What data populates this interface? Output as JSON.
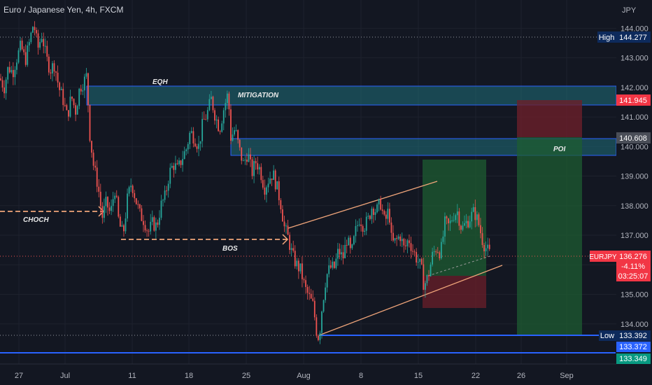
{
  "header": {
    "symbol_title": "Euro / Japanese Yen, 4h, FXCM",
    "currency": "JPY"
  },
  "colors": {
    "background": "#131722",
    "up": "#26a69a",
    "down": "#ef5350",
    "zone_fill": "#1f6f7a",
    "zone_border": "#2962ff",
    "trend_line": "#f0a57a",
    "dash_line": "#f0a57a",
    "hline": "#2962ff"
  },
  "chart_data": {
    "type": "candlestick",
    "y_range": [
      133.0,
      144.6
    ],
    "x_ticks": [
      "27",
      "Jul",
      "11",
      "18",
      "25",
      "Aug",
      "8",
      "15",
      "22",
      "26",
      "Sep"
    ],
    "y_ticks": [
      "144.000",
      "143.000",
      "142.000",
      "141.000",
      "140.000",
      "139.000",
      "138.000",
      "137.000",
      "136.000",
      "135.000",
      "134.000"
    ],
    "price_path": [
      [
        0,
        142.3
      ],
      [
        6,
        142.0
      ],
      [
        12,
        142.7
      ],
      [
        18,
        142.5
      ],
      [
        24,
        143.0
      ],
      [
        30,
        143.4
      ],
      [
        36,
        142.9
      ],
      [
        42,
        143.5
      ],
      [
        48,
        144.2
      ],
      [
        54,
        143.3
      ],
      [
        60,
        143.8
      ],
      [
        66,
        143.0
      ],
      [
        72,
        142.6
      ],
      [
        78,
        142.8
      ],
      [
        84,
        142.0
      ],
      [
        90,
        141.6
      ],
      [
        96,
        141.0
      ],
      [
        102,
        141.7
      ],
      [
        108,
        141.2
      ],
      [
        114,
        142.0
      ],
      [
        120,
        142.2
      ],
      [
        124,
        142.4
      ],
      [
        128,
        140.5
      ],
      [
        134,
        139.3
      ],
      [
        140,
        138.7
      ],
      [
        146,
        137.6
      ],
      [
        152,
        138.1
      ],
      [
        158,
        137.7
      ],
      [
        164,
        138.6
      ],
      [
        170,
        137.4
      ],
      [
        176,
        137.0
      ],
      [
        182,
        138.2
      ],
      [
        188,
        138.8
      ],
      [
        194,
        138.2
      ],
      [
        200,
        137.7
      ],
      [
        206,
        137.5
      ],
      [
        212,
        137.1
      ],
      [
        218,
        137.4
      ],
      [
        224,
        137.3
      ],
      [
        230,
        138.0
      ],
      [
        236,
        138.3
      ],
      [
        242,
        139.1
      ],
      [
        248,
        139.4
      ],
      [
        254,
        139.2
      ],
      [
        260,
        139.6
      ],
      [
        266,
        139.9
      ],
      [
        272,
        140.5
      ],
      [
        278,
        140.3
      ],
      [
        284,
        140.0
      ],
      [
        290,
        140.8
      ],
      [
        296,
        141.1
      ],
      [
        302,
        141.6
      ],
      [
        308,
        141.0
      ],
      [
        314,
        140.6
      ],
      [
        320,
        141.3
      ],
      [
        326,
        141.8
      ],
      [
        330,
        140.3
      ],
      [
        336,
        140.6
      ],
      [
        342,
        139.9
      ],
      [
        348,
        139.4
      ],
      [
        354,
        139.8
      ],
      [
        360,
        139.1
      ],
      [
        366,
        139.5
      ],
      [
        372,
        139.2
      ],
      [
        378,
        138.6
      ],
      [
        384,
        138.9
      ],
      [
        390,
        139.1
      ],
      [
        396,
        138.6
      ],
      [
        402,
        138.0
      ],
      [
        406,
        137.3
      ],
      [
        412,
        136.9
      ],
      [
        418,
        136.3
      ],
      [
        424,
        136.0
      ],
      [
        430,
        135.8
      ],
      [
        436,
        135.2
      ],
      [
        442,
        134.9
      ],
      [
        448,
        134.6
      ],
      [
        452,
        133.8
      ],
      [
        456,
        133.5
      ],
      [
        460,
        134.5
      ],
      [
        466,
        135.6
      ],
      [
        472,
        135.9
      ],
      [
        478,
        135.9
      ],
      [
        484,
        136.5
      ],
      [
        490,
        136.2
      ],
      [
        496,
        136.9
      ],
      [
        502,
        136.3
      ],
      [
        508,
        137.1
      ],
      [
        514,
        137.6
      ],
      [
        520,
        137.3
      ],
      [
        526,
        137.5
      ],
      [
        532,
        138.0
      ],
      [
        538,
        137.8
      ],
      [
        544,
        138.1
      ],
      [
        550,
        137.4
      ],
      [
        556,
        137.9
      ],
      [
        560,
        136.7
      ],
      [
        566,
        136.8
      ],
      [
        572,
        137.0
      ],
      [
        578,
        136.5
      ],
      [
        584,
        136.9
      ],
      [
        590,
        136.5
      ],
      [
        596,
        136.2
      ],
      [
        602,
        135.9
      ],
      [
        606,
        135.3
      ],
      [
        612,
        135.6
      ],
      [
        618,
        136.3
      ],
      [
        624,
        136.6
      ],
      [
        630,
        136.4
      ],
      [
        636,
        137.4
      ],
      [
        642,
        137.3
      ],
      [
        648,
        137.7
      ],
      [
        654,
        137.8
      ],
      [
        660,
        137.2
      ],
      [
        666,
        137.4
      ],
      [
        672,
        137.6
      ],
      [
        678,
        137.8
      ],
      [
        684,
        137.4
      ],
      [
        690,
        136.8
      ],
      [
        696,
        136.5
      ],
      [
        702,
        136.3
      ]
    ],
    "price_labels": [
      {
        "label": "High",
        "value": "144.277",
        "price": 144.277
      },
      {
        "label": "",
        "value": "141.945",
        "price": 141.945
      },
      {
        "label": "",
        "value": "140.608",
        "price": 140.608
      },
      {
        "label": "EURJPY",
        "value": "136.276",
        "change": "-4.11%",
        "countdown": "03:25:07",
        "price": 136.276
      },
      {
        "label": "Low",
        "value": "133.392",
        "price": 133.392
      },
      {
        "label": "",
        "value": "133.372",
        "price": 133.372
      },
      {
        "label": "",
        "value": "133.349",
        "price": 133.349
      }
    ],
    "annotations": {
      "eqh": "EQH",
      "mitigation": "MITIGATION",
      "choch": "CHOCH",
      "bos": "BOS",
      "poi": "POI"
    }
  }
}
